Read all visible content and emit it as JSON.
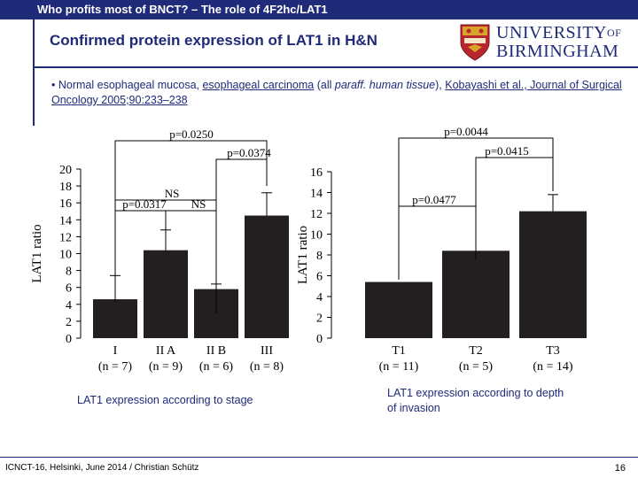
{
  "header": {
    "title": "Who profits most of BNCT? – The role of 4F2hc/LAT1",
    "subtitle": "Confirmed protein expression of LAT1 in H&N"
  },
  "logo": {
    "university_line1": "UNIVERSITY",
    "university_of": "OF",
    "university_line2": "BIRMINGHAM",
    "crest_icon": "university-crest-icon"
  },
  "reference": {
    "bullet": "•",
    "part1": "Normal esophageal mucosa, ",
    "part2": "esophageal carcinoma",
    "part3": " (all ",
    "part4": "paraff. human tissue",
    "part5": "), ",
    "part6": "Kobayashi et al., Journal of Surgical Oncology 2005;90:233–238"
  },
  "captions": {
    "left": "LAT1 expression according to stage",
    "right": "LAT1 expression according to depth of invasion"
  },
  "footer": {
    "text": "ICNCT-16, Helsinki, June 2014  /  Christian Schütz",
    "page": "16"
  },
  "chart_data": [
    {
      "type": "bar",
      "ylabel": "LAT1 ratio",
      "ylim": [
        0,
        20
      ],
      "yticks": [
        "0",
        "2",
        "4",
        "6",
        "8",
        "10",
        "12",
        "14",
        "16",
        "18",
        "20"
      ],
      "categories": [
        "I",
        "II A",
        "II B",
        "III"
      ],
      "counts": [
        "(n = 7)",
        "(n = 9)",
        "(n = 6)",
        "(n = 8)"
      ],
      "values": [
        4.6,
        10.4,
        5.8,
        14.5
      ],
      "errors": [
        2.8,
        2.4,
        0.6,
        2.7
      ],
      "annotations": [
        {
          "label": "p=0.0250",
          "from": 0,
          "to": 3
        },
        {
          "label": "p=0.0374",
          "from": 2,
          "to": 3
        },
        {
          "label": "NS",
          "from": 0,
          "to": 2
        },
        {
          "label": "p=0.0317",
          "from": 0,
          "to": 1
        },
        {
          "label": "NS",
          "from": 1,
          "to": 2
        }
      ]
    },
    {
      "type": "bar",
      "ylabel": "LAT1 ratio",
      "ylim": [
        0,
        16
      ],
      "yticks": [
        "0",
        "2",
        "4",
        "6",
        "8",
        "10",
        "12",
        "14",
        "16"
      ],
      "categories": [
        "T1",
        "T2",
        "T3"
      ],
      "counts": [
        "(n = 11)",
        "(n = 5)",
        "(n = 14)"
      ],
      "values": [
        5.4,
        8.4,
        12.2
      ],
      "errors": [
        0,
        0,
        1.6
      ],
      "annotations": [
        {
          "label": "p=0.0044",
          "from": 0,
          "to": 2
        },
        {
          "label": "p=0.0415",
          "from": 1,
          "to": 2
        },
        {
          "label": "p=0.0477",
          "from": 0,
          "to": 1
        }
      ]
    }
  ]
}
